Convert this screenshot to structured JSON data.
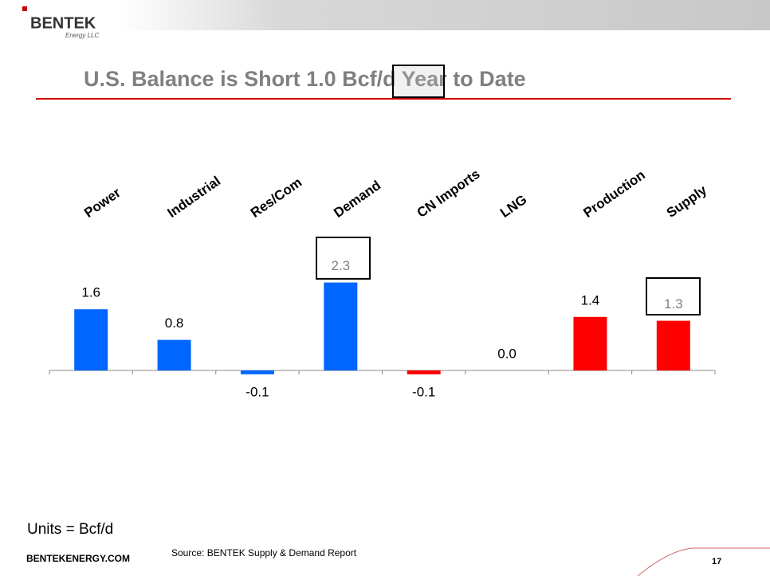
{
  "header": {
    "logo": "BENTEK",
    "logo_sub": "Energy LLC",
    "title": "U.S. Balance is Short 1.0 Bcf/d Year to Date"
  },
  "chart_data": {
    "type": "bar",
    "categories": [
      "Power",
      "Industrial",
      "Res/Com",
      "Demand",
      "CN Imports",
      "LNG",
      "Production",
      "Supply"
    ],
    "values": [
      1.6,
      0.8,
      -0.1,
      2.3,
      -0.1,
      0.0,
      1.4,
      1.3
    ],
    "value_labels": [
      "1.6",
      "0.8",
      "-0.1",
      "2.3",
      "-0.1",
      "0.0",
      "1.4",
      "1.3"
    ],
    "colors": [
      "#0066ff",
      "#0066ff",
      "#0066ff",
      "#0066ff",
      "#ff0000",
      "#ff0000",
      "#ff0000",
      "#ff0000"
    ],
    "label_colors": [
      "#000000",
      "#000000",
      "#000000",
      "#808080",
      "#000000",
      "#000000",
      "#000000",
      "#808080"
    ],
    "ylim": [
      -2,
      3
    ]
  },
  "footer": {
    "units": "Units = Bcf/d",
    "site": "BENTEKENERGY.COM",
    "source": "Source: BENTEK Supply & Demand Report",
    "page": "17"
  }
}
